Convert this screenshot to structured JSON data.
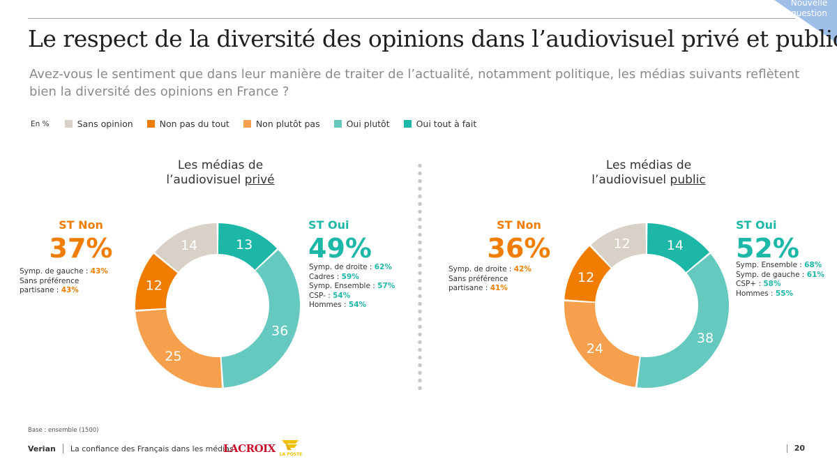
{
  "corner_badge": "Nouvelle question",
  "title": "Le respect de la diversité des opinions dans l’audiovisuel privé et public",
  "subtitle": "Avez-vous le sentiment que dans leur manière de traiter de l’actualité, notamment politique, les médias suivants reflètent bien la diversité des opinions en France ?",
  "legend": {
    "unit": "En %",
    "items": [
      {
        "label": "Sans opinion",
        "color": "#d9d1c7"
      },
      {
        "label": "Non pas du tout",
        "color": "#f07d00"
      },
      {
        "label": "Non plutôt pas",
        "color": "#f6a04d"
      },
      {
        "label": "Oui plutôt",
        "color": "#66c9bf"
      },
      {
        "label": "Oui tout à fait",
        "color": "#1db7a8"
      }
    ]
  },
  "charts": [
    {
      "title_line1": "Les médias de",
      "title_line2_prefix": "l’audiovisuel ",
      "title_line2_underlined": "privé",
      "st_non_label": "ST Non",
      "st_non_value": "37%",
      "st_non_notes": [
        {
          "text": "Symp. de gauche : ",
          "value": "43%"
        },
        {
          "text": "Sans préférence",
          "value": ""
        },
        {
          "text": "partisane : ",
          "value": "43%"
        }
      ],
      "st_oui_label": "ST Oui",
      "st_oui_value": "49%",
      "st_oui_notes": [
        {
          "text": "Symp. de droite : ",
          "value": "62%"
        },
        {
          "text": "Cadres : ",
          "value": "59%"
        },
        {
          "text": "Symp. Ensemble : ",
          "value": "57%"
        },
        {
          "text": "CSP- : ",
          "value": "54%"
        },
        {
          "text": "Hommes : ",
          "value": "54%"
        }
      ]
    },
    {
      "title_line1": "Les médias de",
      "title_line2_prefix": "l’audiovisuel ",
      "title_line2_underlined": "public",
      "st_non_label": "ST Non",
      "st_non_value": "36%",
      "st_non_notes": [
        {
          "text": "Symp. de droite : ",
          "value": "42%"
        },
        {
          "text": "Sans préférence",
          "value": ""
        },
        {
          "text": "partisane : ",
          "value": "41%"
        }
      ],
      "st_oui_label": "ST Oui",
      "st_oui_value": "52%",
      "st_oui_notes": [
        {
          "text": "Symp. Ensemble : ",
          "value": "68%"
        },
        {
          "text": "Symp. de gauche : ",
          "value": "61%"
        },
        {
          "text": "CSP+ : ",
          "value": "58%"
        },
        {
          "text": "Hommes : ",
          "value": "55%"
        }
      ]
    }
  ],
  "chart_data": [
    {
      "type": "pie",
      "title": "Les médias de l’audiovisuel privé",
      "categories": [
        "Oui tout à fait",
        "Oui plutôt",
        "Non plutôt pas",
        "Non pas du tout",
        "Sans opinion"
      ],
      "values": [
        13,
        36,
        25,
        12,
        14
      ],
      "colors": [
        "#1db7a8",
        "#66c9bf",
        "#f6a04d",
        "#f07d00",
        "#d9d1c7"
      ],
      "unit": "%"
    },
    {
      "type": "pie",
      "title": "Les médias de l’audiovisuel public",
      "categories": [
        "Oui tout à fait",
        "Oui plutôt",
        "Non plutôt pas",
        "Non pas du tout",
        "Sans opinion"
      ],
      "values": [
        14,
        38,
        24,
        12,
        12
      ],
      "colors": [
        "#1db7a8",
        "#66c9bf",
        "#f6a04d",
        "#f07d00",
        "#d9d1c7"
      ],
      "unit": "%"
    }
  ],
  "st_colors": {
    "non": "#f07d00",
    "oui": "#1db7a8"
  },
  "base_note": "Base : ensemble (1500)",
  "footer": {
    "brand": "Verian",
    "text": "La confiance des Français dans les médias",
    "logo1": "LA CROIX",
    "logo2": "LA POSTE",
    "page": "20"
  }
}
